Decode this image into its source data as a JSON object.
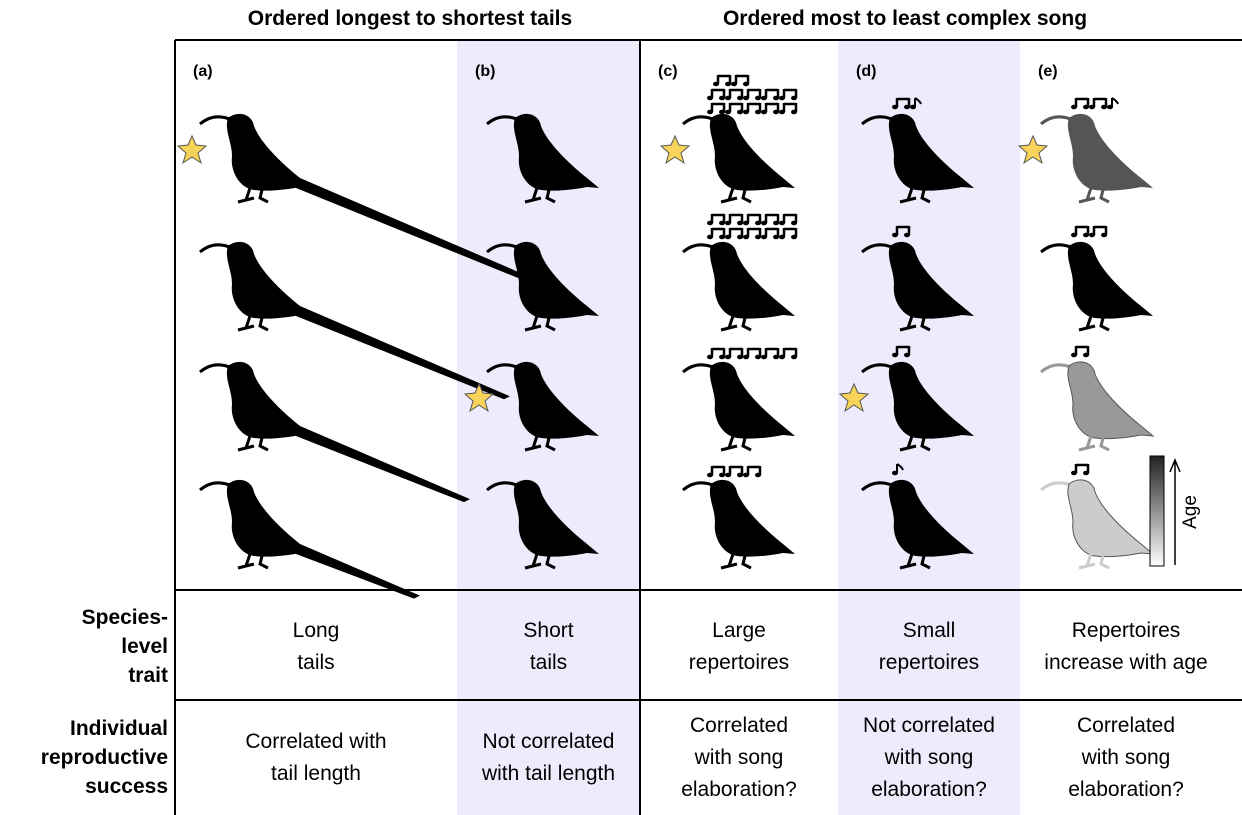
{
  "header": {
    "left_title": "Ordered longest to shortest tails",
    "right_title": "Ordered most to least complex song"
  },
  "panels": [
    {
      "label": "(a)"
    },
    {
      "label": "(b)"
    },
    {
      "label": "(c)"
    },
    {
      "label": "(d)"
    },
    {
      "label": "(e)"
    }
  ],
  "rows": [
    {
      "label": [
        "Species-",
        "level",
        "trait"
      ],
      "cells": [
        [
          "Long",
          "tails"
        ],
        [
          "Short",
          "tails"
        ],
        [
          "Large",
          "repertoires"
        ],
        [
          "Small",
          "repertoires"
        ],
        [
          "Repertoires",
          "increase with age"
        ]
      ]
    },
    {
      "label": [
        "Individual",
        "reproductive",
        "success"
      ],
      "cells": [
        [
          "Correlated with",
          "tail length"
        ],
        [
          "Not correlated",
          "with tail length"
        ],
        [
          "Correlated",
          "with song",
          "elaboration?"
        ],
        [
          "Not correlated",
          "with song",
          "elaboration?"
        ],
        [
          "Correlated",
          "with song",
          "elaboration?"
        ]
      ]
    }
  ],
  "age_label": "Age"
}
